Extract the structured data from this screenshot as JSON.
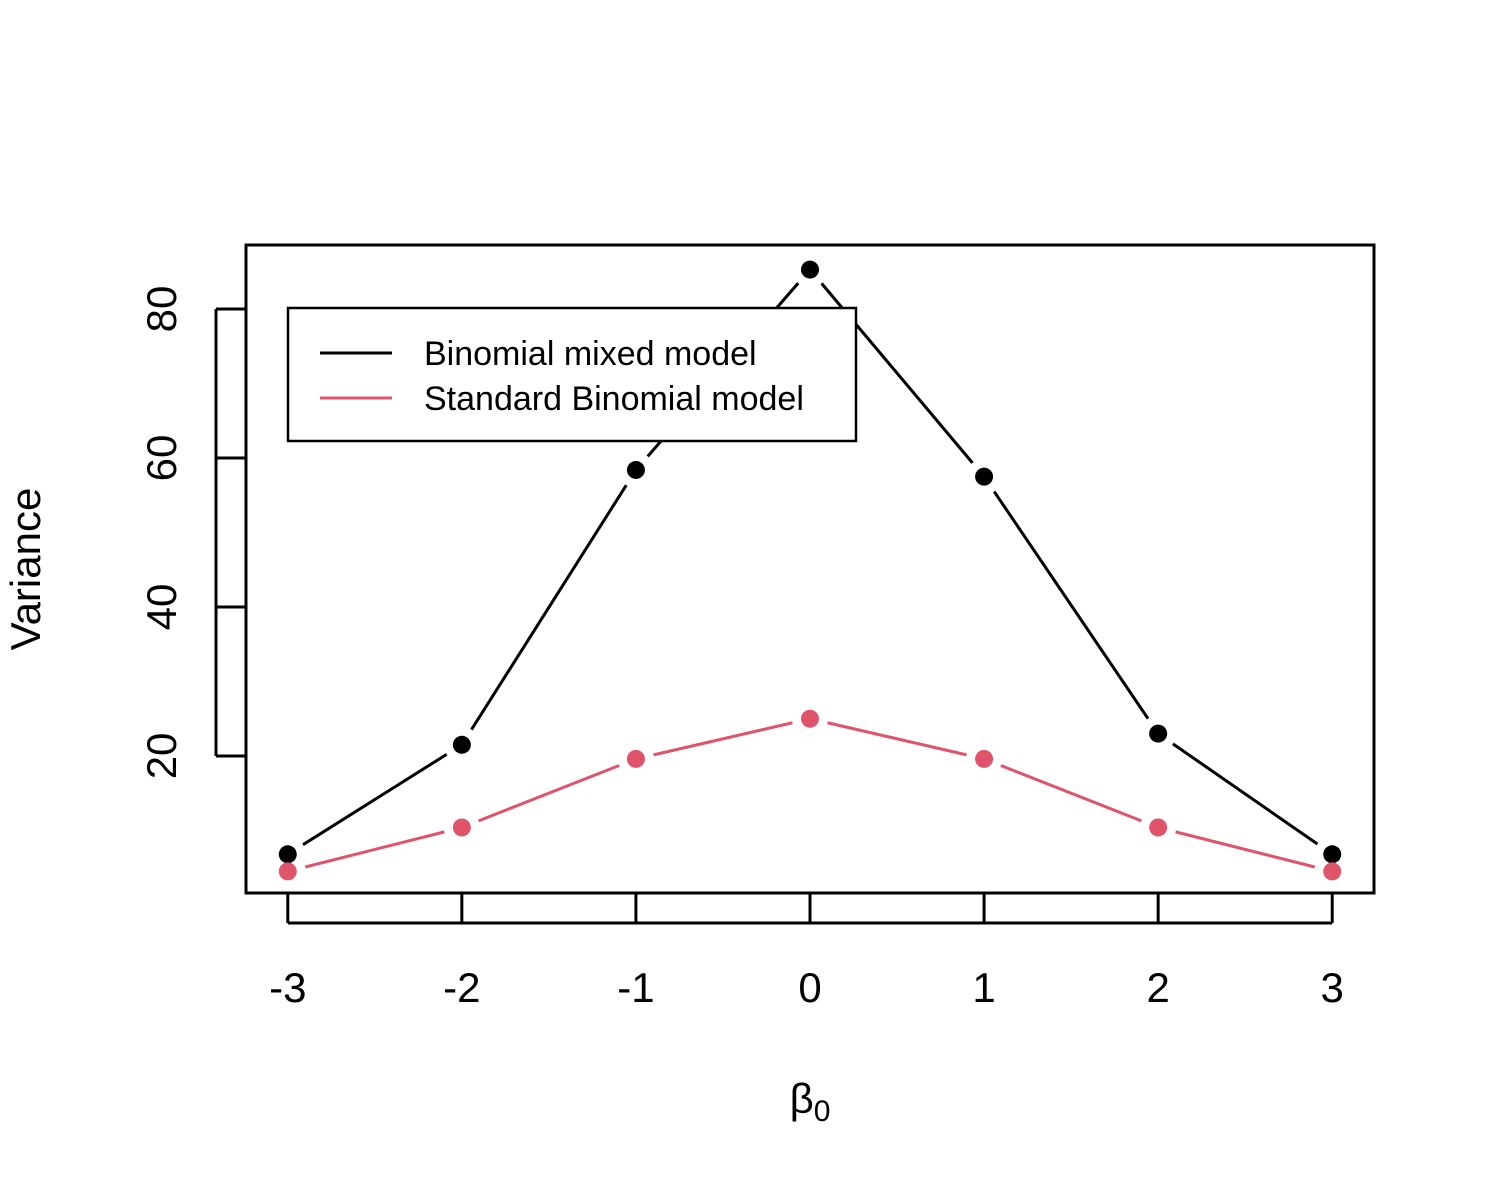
{
  "chart_data": {
    "type": "line",
    "title": "",
    "xlabel_main": "β",
    "xlabel_sub": "0",
    "ylabel": "Variance",
    "x": [
      -3,
      -2,
      -1,
      0,
      1,
      2,
      3
    ],
    "xticks": [
      "-3",
      "-2",
      "-1",
      "0",
      "1",
      "2",
      "3"
    ],
    "yticks": [
      "20",
      "40",
      "60",
      "80"
    ],
    "ytick_values": [
      20,
      40,
      60,
      80
    ],
    "xlim": [
      -3.24,
      3.24
    ],
    "ylim": [
      1.6,
      88.6
    ],
    "grid": false,
    "legend_position": "top-left",
    "series": [
      {
        "name": "Binomial mixed model",
        "color": "#000000",
        "values": [
          6.8,
          21.5,
          58.4,
          85.3,
          57.5,
          23.0,
          6.8
        ]
      },
      {
        "name": "Standard Binomial model",
        "color": "#DF536B",
        "values": [
          4.5,
          10.4,
          19.6,
          25.0,
          19.6,
          10.4,
          4.5
        ]
      }
    ]
  }
}
